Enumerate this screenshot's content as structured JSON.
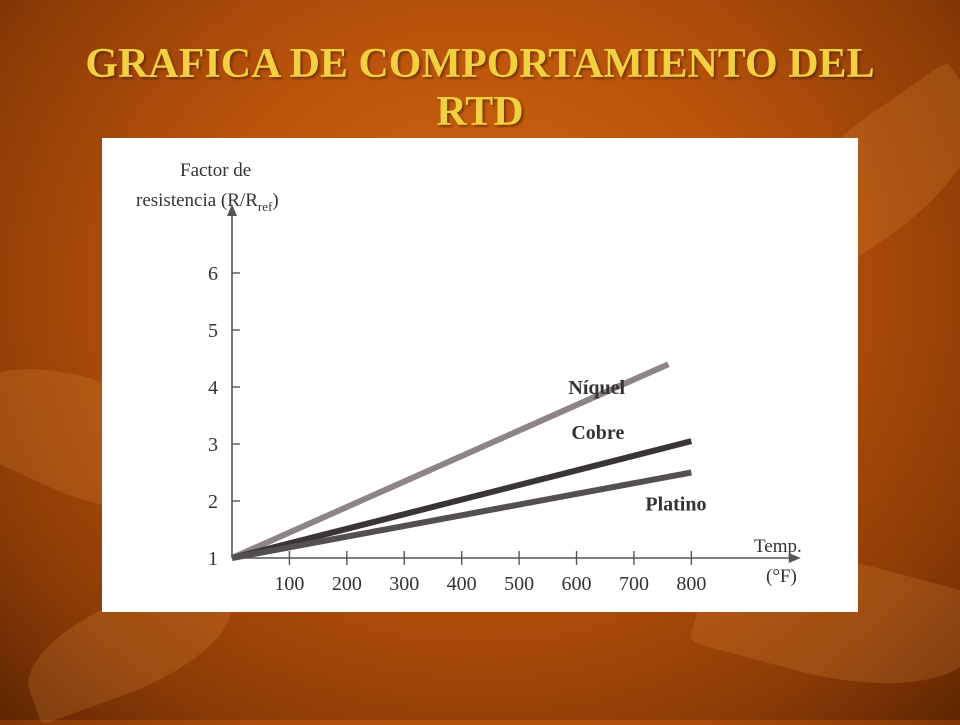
{
  "slide": {
    "title": "GRAFICA DE COMPORTAMIENTO DEL RTD"
  },
  "colors": {
    "background": "#b8520a",
    "title": "#f2d040",
    "niquel": "#8e8484",
    "cobre": "#3a3535",
    "platino": "#555050",
    "axis": "#555555"
  },
  "chart_data": {
    "type": "line",
    "ylabel_line1": "Factor de",
    "ylabel_main": "resistencia (R/R",
    "ylabel_sub": "ref",
    "ylabel_close": ")",
    "xlabel_line1": "Temp.",
    "xlabel_line2": "(°F)",
    "x_ticks": [
      100,
      200,
      300,
      400,
      500,
      600,
      700,
      800
    ],
    "y_ticks": [
      1,
      2,
      3,
      4,
      5,
      6
    ],
    "xlim": [
      0,
      900
    ],
    "ylim": [
      1,
      7
    ],
    "grid": false,
    "series": [
      {
        "name": "Níquel",
        "color": "#8e8484",
        "x": [
          0,
          760
        ],
        "y": [
          1,
          4.4
        ]
      },
      {
        "name": "Cobre",
        "color": "#3a3535",
        "x": [
          0,
          800
        ],
        "y": [
          1,
          3.05
        ]
      },
      {
        "name": "Platino",
        "color": "#555050",
        "x": [
          0,
          800
        ],
        "y": [
          1,
          2.5
        ]
      }
    ]
  }
}
